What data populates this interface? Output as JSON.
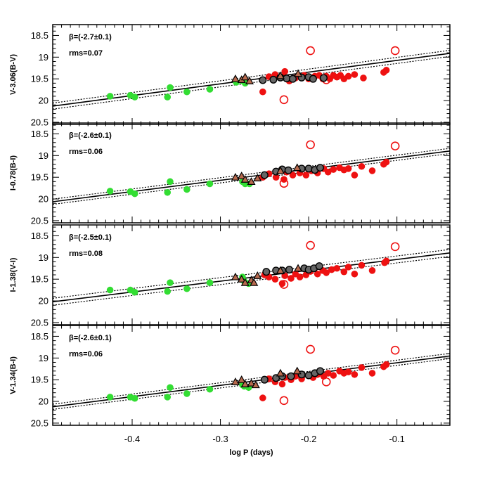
{
  "chart_data": {
    "type": "scatter",
    "xlabel": "log P (days)",
    "xlim": [
      -0.49,
      -0.04
    ],
    "xticks": [
      -0.4,
      -0.3,
      -0.2,
      -0.1
    ],
    "xtick_labels": [
      "-0.4",
      "-0.3",
      "-0.2",
      "-0.1"
    ],
    "ylim": [
      18.25,
      20.55
    ],
    "ytick_values": [
      18.5,
      19,
      19.5,
      20,
      20.5
    ],
    "ytick_labels": [
      "18.5",
      "19",
      "19.5",
      "20",
      "20.5"
    ],
    "y_inverted": true,
    "colors": {
      "green": "#33dd33",
      "red": "#ee1111",
      "gray": "#666666",
      "triangle": "#b86a4e",
      "fit": "#000000"
    },
    "legend": [
      {
        "marker": "filled-circle",
        "color": "green"
      },
      {
        "marker": "filled-circle",
        "color": "red"
      },
      {
        "marker": "open-circle",
        "color": "red"
      },
      {
        "marker": "gray-circle",
        "color": "gray"
      },
      {
        "marker": "triangle",
        "color": "brown"
      }
    ],
    "panels": [
      {
        "ylabel": "V-3.06(B-V)",
        "beta": "β=(-2.7±0.1)",
        "rms": "rms=0.07",
        "fit": {
          "x0": -0.25,
          "y0": 19.48,
          "slope": -2.7,
          "band": 0.07
        },
        "green": [
          [
            -0.425,
            19.9
          ],
          [
            -0.402,
            19.88
          ],
          [
            -0.397,
            19.92
          ],
          [
            -0.36,
            19.92
          ],
          [
            -0.357,
            19.7
          ],
          [
            -0.338,
            19.8
          ],
          [
            -0.312,
            19.74
          ],
          [
            -0.282,
            19.58
          ],
          [
            -0.275,
            19.55
          ],
          [
            -0.272,
            19.6
          ]
        ],
        "triangles": [
          [
            -0.283,
            19.5
          ],
          [
            -0.276,
            19.52
          ],
          [
            -0.272,
            19.46
          ],
          [
            -0.267,
            19.55
          ],
          [
            -0.232,
            19.43
          ],
          [
            -0.212,
            19.38
          ]
        ],
        "gray": [
          [
            -0.252,
            19.53
          ],
          [
            -0.24,
            19.52
          ],
          [
            -0.232,
            19.47
          ],
          [
            -0.225,
            19.49
          ],
          [
            -0.218,
            19.5
          ],
          [
            -0.208,
            19.47
          ],
          [
            -0.2,
            19.46
          ],
          [
            -0.195,
            19.5
          ],
          [
            -0.183,
            19.48
          ]
        ],
        "red": [
          [
            -0.252,
            19.8
          ],
          [
            -0.245,
            19.45
          ],
          [
            -0.238,
            19.4
          ],
          [
            -0.23,
            19.45
          ],
          [
            -0.227,
            19.33
          ],
          [
            -0.222,
            19.55
          ],
          [
            -0.215,
            19.48
          ],
          [
            -0.205,
            19.42
          ],
          [
            -0.2,
            19.5
          ],
          [
            -0.193,
            19.44
          ],
          [
            -0.188,
            19.42
          ],
          [
            -0.184,
            19.5
          ],
          [
            -0.18,
            19.44
          ],
          [
            -0.176,
            19.5
          ],
          [
            -0.172,
            19.42
          ],
          [
            -0.168,
            19.46
          ],
          [
            -0.164,
            19.42
          ],
          [
            -0.16,
            19.5
          ],
          [
            -0.155,
            19.44
          ],
          [
            -0.148,
            19.4
          ],
          [
            -0.138,
            19.48
          ],
          [
            -0.115,
            19.35
          ],
          [
            -0.112,
            19.3
          ]
        ],
        "open": [
          [
            -0.198,
            18.85
          ],
          [
            -0.102,
            18.85
          ],
          [
            -0.228,
            19.98
          ],
          [
            -0.18,
            19.52
          ]
        ]
      },
      {
        "ylabel": "I-0.78(B-I)",
        "beta": "β=(-2.6±0.1)",
        "rms": "rms=0.06",
        "fit": {
          "x0": -0.25,
          "y0": 19.44,
          "slope": -2.6,
          "band": 0.06
        },
        "green": [
          [
            -0.425,
            19.82
          ],
          [
            -0.402,
            19.83
          ],
          [
            -0.397,
            19.88
          ],
          [
            -0.36,
            19.85
          ],
          [
            -0.357,
            19.6
          ],
          [
            -0.338,
            19.78
          ],
          [
            -0.312,
            19.65
          ],
          [
            -0.275,
            19.6
          ],
          [
            -0.272,
            19.65
          ],
          [
            -0.267,
            19.65
          ]
        ],
        "triangles": [
          [
            -0.283,
            19.5
          ],
          [
            -0.276,
            19.47
          ],
          [
            -0.272,
            19.55
          ],
          [
            -0.265,
            19.6
          ],
          [
            -0.258,
            19.52
          ],
          [
            -0.232,
            19.35
          ],
          [
            -0.213,
            19.28
          ]
        ],
        "gray": [
          [
            -0.25,
            19.45
          ],
          [
            -0.237,
            19.37
          ],
          [
            -0.23,
            19.32
          ],
          [
            -0.223,
            19.34
          ],
          [
            -0.208,
            19.3
          ],
          [
            -0.2,
            19.3
          ],
          [
            -0.193,
            19.33
          ],
          [
            -0.187,
            19.28
          ]
        ],
        "red": [
          [
            -0.252,
            19.5
          ],
          [
            -0.245,
            19.42
          ],
          [
            -0.237,
            19.5
          ],
          [
            -0.228,
            19.55
          ],
          [
            -0.225,
            19.38
          ],
          [
            -0.218,
            19.45
          ],
          [
            -0.21,
            19.4
          ],
          [
            -0.203,
            19.45
          ],
          [
            -0.197,
            19.35
          ],
          [
            -0.19,
            19.4
          ],
          [
            -0.183,
            19.3
          ],
          [
            -0.178,
            19.38
          ],
          [
            -0.172,
            19.32
          ],
          [
            -0.165,
            19.28
          ],
          [
            -0.16,
            19.33
          ],
          [
            -0.155,
            19.3
          ],
          [
            -0.148,
            19.45
          ],
          [
            -0.14,
            19.25
          ],
          [
            -0.128,
            19.35
          ],
          [
            -0.115,
            19.2
          ],
          [
            -0.112,
            19.15
          ]
        ],
        "open": [
          [
            -0.198,
            18.75
          ],
          [
            -0.102,
            18.78
          ],
          [
            -0.228,
            19.64
          ]
        ]
      },
      {
        "ylabel": "I-1.38(V-I)",
        "beta": "β=(-2.5±0.1)",
        "rms": "rms=0.08",
        "fit": {
          "x0": -0.25,
          "y0": 19.42,
          "slope": -2.5,
          "band": 0.08
        },
        "green": [
          [
            -0.425,
            19.75
          ],
          [
            -0.402,
            19.75
          ],
          [
            -0.397,
            19.8
          ],
          [
            -0.36,
            19.78
          ],
          [
            -0.357,
            19.58
          ],
          [
            -0.338,
            19.72
          ],
          [
            -0.312,
            19.58
          ],
          [
            -0.275,
            19.45
          ],
          [
            -0.273,
            19.55
          ],
          [
            -0.268,
            19.6
          ]
        ],
        "triangles": [
          [
            -0.283,
            19.45
          ],
          [
            -0.276,
            19.5
          ],
          [
            -0.272,
            19.58
          ],
          [
            -0.265,
            19.52
          ],
          [
            -0.258,
            19.42
          ],
          [
            -0.262,
            19.58
          ],
          [
            -0.232,
            19.3
          ],
          [
            -0.212,
            19.25
          ]
        ],
        "gray": [
          [
            -0.248,
            19.33
          ],
          [
            -0.237,
            19.3
          ],
          [
            -0.23,
            19.3
          ],
          [
            -0.222,
            19.28
          ],
          [
            -0.205,
            19.25
          ],
          [
            -0.2,
            19.28
          ],
          [
            -0.194,
            19.25
          ],
          [
            -0.188,
            19.2
          ]
        ],
        "red": [
          [
            -0.25,
            19.4
          ],
          [
            -0.245,
            19.45
          ],
          [
            -0.238,
            19.5
          ],
          [
            -0.23,
            19.6
          ],
          [
            -0.227,
            19.42
          ],
          [
            -0.22,
            19.48
          ],
          [
            -0.215,
            19.38
          ],
          [
            -0.21,
            19.45
          ],
          [
            -0.203,
            19.4
          ],
          [
            -0.198,
            19.32
          ],
          [
            -0.19,
            19.38
          ],
          [
            -0.184,
            19.3
          ],
          [
            -0.18,
            19.35
          ],
          [
            -0.174,
            19.28
          ],
          [
            -0.168,
            19.25
          ],
          [
            -0.16,
            19.33
          ],
          [
            -0.155,
            19.22
          ],
          [
            -0.148,
            19.38
          ],
          [
            -0.14,
            19.18
          ],
          [
            -0.128,
            19.3
          ],
          [
            -0.114,
            19.12
          ],
          [
            -0.112,
            19.08
          ]
        ],
        "open": [
          [
            -0.198,
            18.72
          ],
          [
            -0.102,
            18.75
          ],
          [
            -0.228,
            19.62
          ]
        ]
      },
      {
        "ylabel": "V-1.34(B-I)",
        "beta": "β=(-2.6±0.1)",
        "rms": "rms=0.06",
        "fit": {
          "x0": -0.25,
          "y0": 19.5,
          "slope": -2.6,
          "band": 0.06
        },
        "green": [
          [
            -0.425,
            19.9
          ],
          [
            -0.402,
            19.9
          ],
          [
            -0.397,
            19.93
          ],
          [
            -0.36,
            19.9
          ],
          [
            -0.357,
            19.68
          ],
          [
            -0.338,
            19.82
          ],
          [
            -0.312,
            19.72
          ],
          [
            -0.275,
            19.62
          ],
          [
            -0.273,
            19.65
          ],
          [
            -0.268,
            19.68
          ]
        ],
        "triangles": [
          [
            -0.283,
            19.55
          ],
          [
            -0.276,
            19.5
          ],
          [
            -0.272,
            19.6
          ],
          [
            -0.265,
            19.58
          ],
          [
            -0.26,
            19.62
          ],
          [
            -0.232,
            19.35
          ],
          [
            -0.213,
            19.3
          ]
        ],
        "gray": [
          [
            -0.25,
            19.5
          ],
          [
            -0.237,
            19.46
          ],
          [
            -0.23,
            19.42
          ],
          [
            -0.22,
            19.42
          ],
          [
            -0.208,
            19.38
          ],
          [
            -0.2,
            19.4
          ],
          [
            -0.193,
            19.35
          ],
          [
            -0.187,
            19.3
          ]
        ],
        "red": [
          [
            -0.252,
            19.92
          ],
          [
            -0.245,
            19.48
          ],
          [
            -0.238,
            19.55
          ],
          [
            -0.23,
            19.6
          ],
          [
            -0.227,
            19.45
          ],
          [
            -0.22,
            19.5
          ],
          [
            -0.215,
            19.42
          ],
          [
            -0.208,
            19.48
          ],
          [
            -0.2,
            19.4
          ],
          [
            -0.195,
            19.45
          ],
          [
            -0.19,
            19.38
          ],
          [
            -0.183,
            19.42
          ],
          [
            -0.178,
            19.35
          ],
          [
            -0.172,
            19.4
          ],
          [
            -0.165,
            19.3
          ],
          [
            -0.16,
            19.35
          ],
          [
            -0.155,
            19.32
          ],
          [
            -0.148,
            19.38
          ],
          [
            -0.14,
            19.22
          ],
          [
            -0.128,
            19.35
          ],
          [
            -0.115,
            19.2
          ],
          [
            -0.112,
            19.15
          ]
        ],
        "open": [
          [
            -0.198,
            18.8
          ],
          [
            -0.102,
            18.82
          ],
          [
            -0.228,
            19.98
          ],
          [
            -0.18,
            19.55
          ]
        ]
      }
    ]
  }
}
